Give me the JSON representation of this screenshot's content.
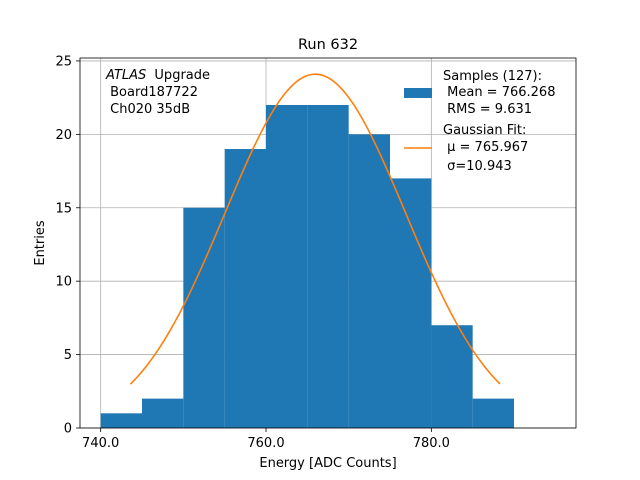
{
  "chart_data": {
    "type": "bar",
    "title": "Run 632",
    "xlabel": "Energy [ADC Counts]",
    "ylabel": "Entries",
    "xlim": [
      737.5,
      797.5
    ],
    "ylim": [
      0,
      25.2
    ],
    "x_ticks": [
      740,
      760,
      780
    ],
    "x_tick_labels": [
      "740.0",
      "760.0",
      "780.0"
    ],
    "y_ticks": [
      0,
      5,
      10,
      15,
      20,
      25
    ],
    "grid": true,
    "legend_position": "top-right",
    "bin_edges": [
      740,
      745,
      750,
      755,
      760,
      765,
      770,
      775,
      780,
      785,
      790
    ],
    "counts": [
      1,
      2,
      15,
      19,
      22,
      22,
      20,
      17,
      7,
      2
    ],
    "annotation": [
      "Upgrade",
      " Board187722",
      " Ch020 35dB"
    ],
    "annotation_italic": "ATLAS",
    "series": [
      {
        "name": "Samples (127):",
        "kind": "histogram",
        "color": "#1f77b4",
        "stats": [
          " Mean = 766.268",
          " RMS = 9.631"
        ]
      },
      {
        "name": "Gaussian Fit:",
        "kind": "line",
        "color": "#ff7f0e",
        "mu": 765.967,
        "sigma": 10.943,
        "amplitude": 24.1,
        "x_range": [
          743.6,
          788.3
        ],
        "stats": [
          " μ = 765.967",
          " σ=10.943"
        ]
      }
    ]
  }
}
